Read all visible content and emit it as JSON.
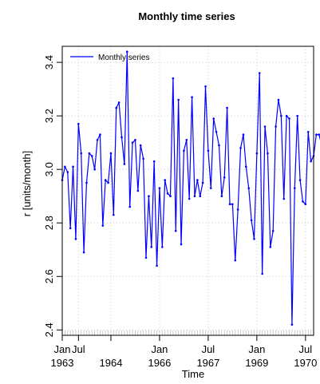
{
  "chart_data": {
    "type": "line",
    "title": "Monthly time series",
    "xlabel": "Time",
    "ylabel": "r [units/month]",
    "ylim": [
      2.38,
      3.46
    ],
    "xlim": [
      "1963-01",
      "1970-10"
    ],
    "grid": true,
    "legend_position": "top-left",
    "y_ticks": [
      "2.4",
      "2.6",
      "2.8",
      "3.0",
      "3.2",
      "3.4"
    ],
    "x_ticks": [
      {
        "date": "1963-01",
        "line1": "Jan",
        "line2": "1963"
      },
      {
        "date": "1963-07",
        "line1": "Jul",
        "line2": ""
      },
      {
        "date": "1964-07",
        "line1": "",
        "line2": "1964"
      },
      {
        "date": "1966-01",
        "line1": "Jan",
        "line2": "1966"
      },
      {
        "date": "1967-07",
        "line1": "Jul",
        "line2": "1967"
      },
      {
        "date": "1969-01",
        "line1": "Jan",
        "line2": "1969"
      },
      {
        "date": "1970-07",
        "line1": "Jul",
        "line2": "1970"
      }
    ],
    "series": [
      {
        "name": "Monthly series",
        "color": "#0000ff",
        "start": "1963-01",
        "values": [
          2.96,
          3.01,
          2.99,
          2.78,
          3.01,
          2.74,
          3.17,
          3.06,
          2.69,
          2.95,
          3.06,
          3.05,
          3.0,
          3.11,
          3.13,
          2.79,
          2.96,
          2.95,
          3.06,
          2.83,
          3.23,
          3.25,
          3.12,
          3.02,
          3.44,
          2.86,
          3.1,
          3.11,
          2.92,
          3.09,
          3.04,
          2.67,
          2.9,
          2.71,
          3.03,
          2.64,
          2.93,
          2.71,
          2.96,
          2.91,
          2.9,
          3.34,
          2.77,
          3.26,
          2.72,
          3.07,
          3.11,
          2.89,
          3.27,
          2.9,
          2.96,
          2.9,
          2.95,
          3.31,
          3.07,
          2.93,
          3.19,
          3.14,
          3.09,
          2.9,
          2.97,
          3.23,
          2.87,
          2.87,
          2.66,
          2.85,
          3.08,
          3.13,
          3.01,
          2.93,
          2.81,
          2.74,
          3.06,
          3.36,
          2.61,
          3.16,
          3.06,
          2.71,
          2.77,
          3.16,
          3.26,
          3.2,
          2.89,
          3.2,
          3.19,
          2.42,
          2.93,
          3.2,
          2.96,
          2.88,
          2.87,
          3.14,
          3.03,
          3.05,
          3.13,
          3.13,
          3.09
        ]
      }
    ]
  }
}
